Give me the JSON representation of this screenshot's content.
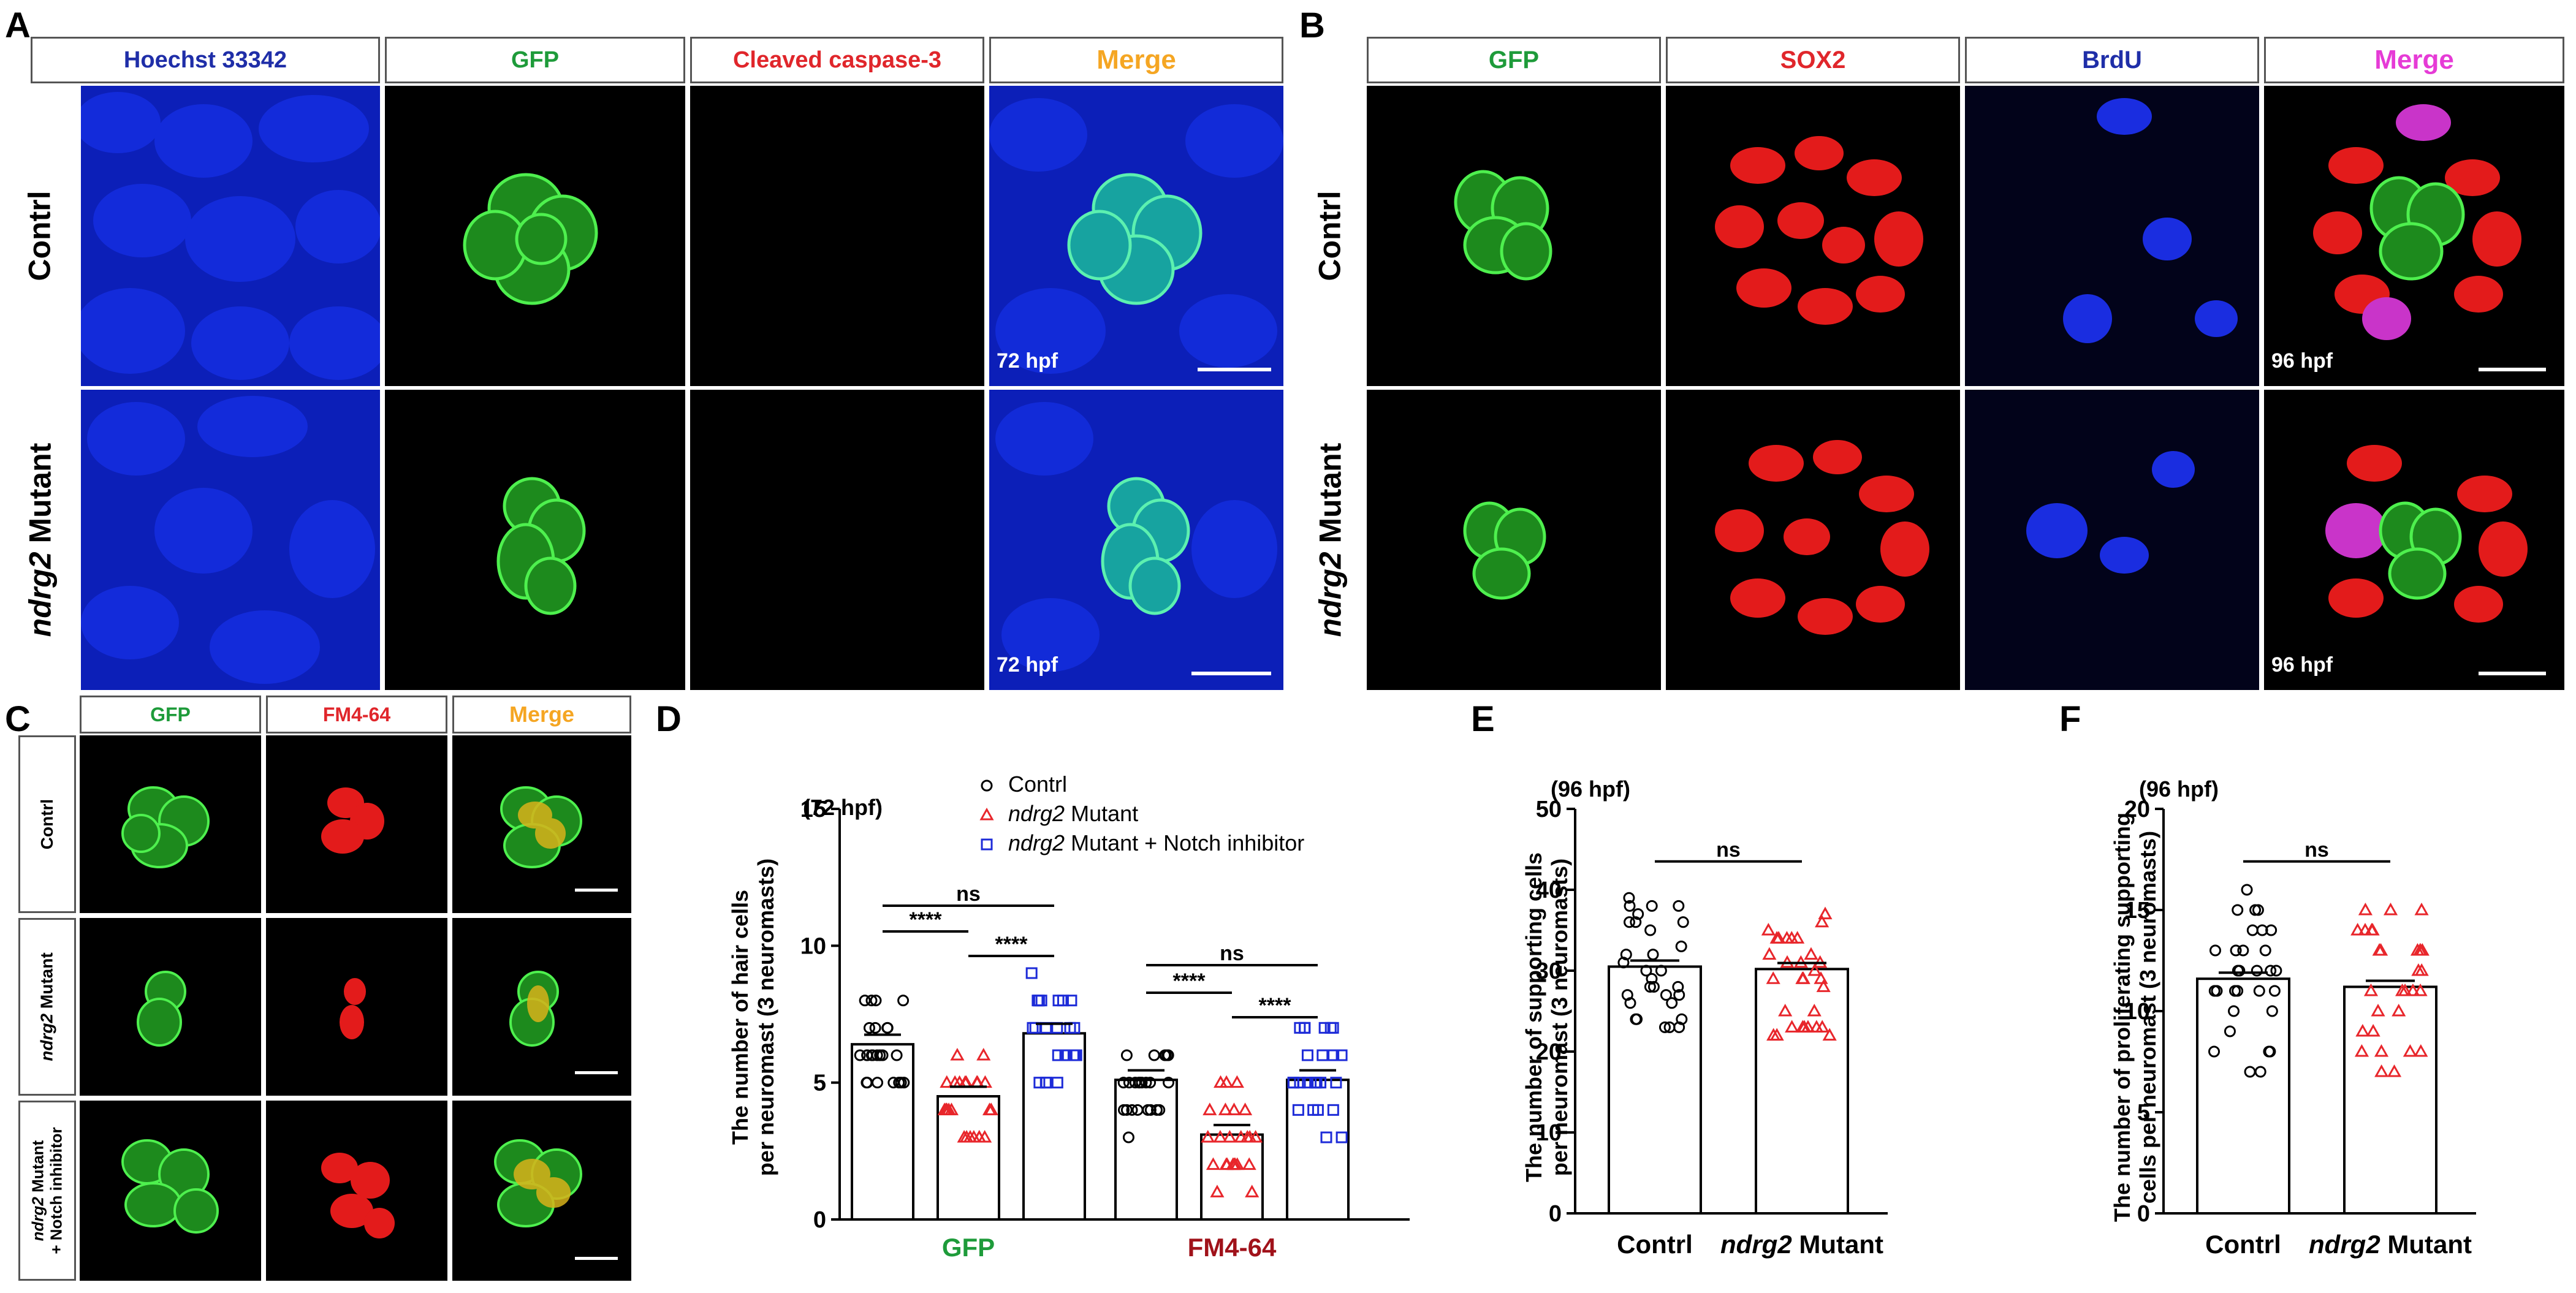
{
  "panel_letters": {
    "a": "A",
    "b": "B",
    "c": "C",
    "d": "D",
    "e": "E",
    "f": "F"
  },
  "panel_a": {
    "columns": [
      "Hoechst 33342",
      "GFP",
      "Cleaved caspase-3",
      "Merge"
    ],
    "rows": [
      {
        "plain": "Contrl",
        "italic": "",
        "rest": ""
      },
      {
        "plain": "",
        "italic": "ndrg2",
        "rest": " Mutant"
      }
    ],
    "stage": "72 hpf"
  },
  "panel_b": {
    "columns": [
      "GFP",
      "SOX2",
      "BrdU",
      "Merge"
    ],
    "rows": [
      {
        "plain": "Contrl",
        "italic": "",
        "rest": ""
      },
      {
        "plain": "",
        "italic": "ndrg2",
        "rest": " Mutant"
      }
    ],
    "stage": "96 hpf"
  },
  "panel_c": {
    "columns": [
      "GFP",
      "FM4-64",
      "Merge"
    ],
    "rows": [
      {
        "plain": "Contrl",
        "italic": "",
        "rest": ""
      },
      {
        "plain": "",
        "italic": "ndrg2",
        "rest": " Mutant"
      },
      {
        "plain": "",
        "italic": "ndrg2",
        "rest": " Mutant",
        "line2": "+ Notch inhibitor"
      }
    ]
  },
  "colors": {
    "blue_label": "#1f2ea8",
    "green_label": "#1e9b3a",
    "red_label": "#e0262b",
    "merge_orange": "#f5a623",
    "merge_magenta": "#e63bd6",
    "ctrl": "#000000",
    "mutant": "#e8262b",
    "notch": "#1d2bd8",
    "fm_dark_red": "#a0121a"
  },
  "chart_data": [
    {
      "type": "bar",
      "title": "(72 hpf)",
      "ylabel_line1": "The number of hair cells",
      "ylabel_line2": "per neuromast (3 neuromasts)",
      "categories": [
        "GFP",
        "FM4-64"
      ],
      "ylim": [
        0,
        15
      ],
      "yticks": [
        "0",
        "5",
        "10",
        "15"
      ],
      "series": [
        {
          "name": "Contrl",
          "values": [
            6.4,
            5.1
          ],
          "marker": "circle"
        },
        {
          "name": "ndrg2 Mutant",
          "values": [
            4.5,
            3.1
          ],
          "marker": "triangle"
        },
        {
          "name": "ndrg2 Mutant + Notch inhibitor",
          "values": [
            6.8,
            5.1
          ],
          "marker": "square"
        }
      ],
      "significance": [
        "ns",
        "****",
        "****",
        "ns",
        "****",
        "****"
      ]
    },
    {
      "type": "bar",
      "title": "(96 hpf)",
      "ylabel_line1": "The number of supporting cells",
      "ylabel_line2": "per neuromast (3 neuromasts)",
      "categories": [
        "Contrl",
        "ndrg2 Mutant"
      ],
      "ylim": [
        0,
        50
      ],
      "yticks": [
        "0",
        "10",
        "20",
        "30",
        "40",
        "50"
      ],
      "values": [
        30.5,
        30.2
      ],
      "significance": [
        "ns"
      ]
    },
    {
      "type": "bar",
      "title": "(96 hpf)",
      "ylabel_line1": "The number of proliferating supporting",
      "ylabel_line2": "cells per neuromast (3 neuromasts)",
      "categories": [
        "Contrl",
        "ndrg2 Mutant"
      ],
      "ylim": [
        0,
        20
      ],
      "yticks": [
        "0",
        "5",
        "10",
        "15",
        "20"
      ],
      "values": [
        11.6,
        11.2
      ],
      "significance": [
        "ns"
      ]
    }
  ]
}
